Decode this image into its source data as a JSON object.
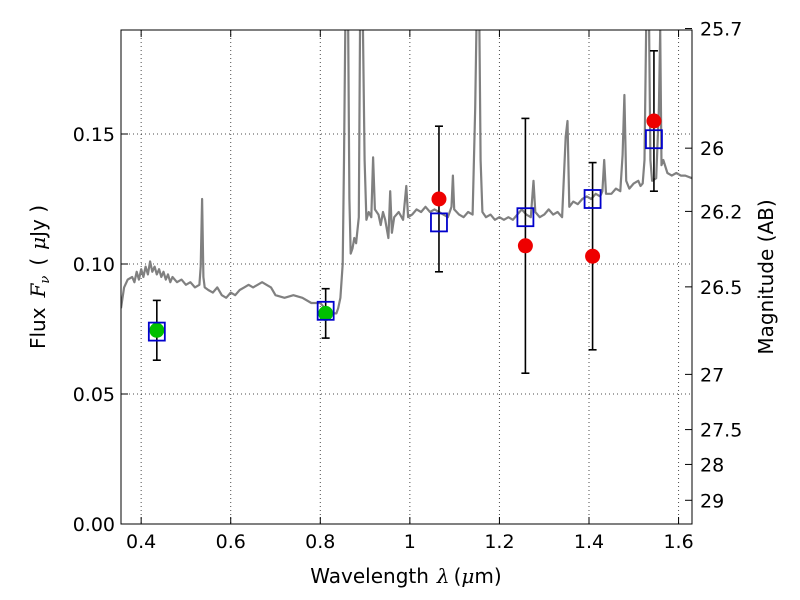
{
  "chart_data": {
    "type": "scatter",
    "title": "",
    "xlabel": "Wavelength",
    "xlabel_symbol": "λ",
    "xlabel_unit_open": "(",
    "xlabel_unit_mu": "μ",
    "xlabel_unit_rest": "m)",
    "ylabel_prefix": "Flux",
    "ylabel_symbol": "F",
    "ylabel_sub": "ν",
    "ylabel_open": "(",
    "ylabel_mu": "μ",
    "ylabel_unit": "Jy )",
    "y2label": "Magnitude (AB)",
    "xlim": [
      0.355,
      1.63
    ],
    "ylim": [
      0.0,
      0.19
    ],
    "grid": true,
    "x_ticks": [
      {
        "value": 0.4,
        "label": "0.4"
      },
      {
        "value": 0.6,
        "label": "0.6"
      },
      {
        "value": 0.8,
        "label": "0.8"
      },
      {
        "value": 1.0,
        "label": "1"
      },
      {
        "value": 1.2,
        "label": "1.2"
      },
      {
        "value": 1.4,
        "label": "1.4"
      },
      {
        "value": 1.6,
        "label": "1.6"
      }
    ],
    "y_ticks": [
      {
        "value": 0.0,
        "label": "0.00"
      },
      {
        "value": 0.05,
        "label": "0.05"
      },
      {
        "value": 0.1,
        "label": "0.10"
      },
      {
        "value": 0.15,
        "label": "0.15"
      }
    ],
    "y2_ticks": [
      {
        "value": 25.7,
        "label": "25.7"
      },
      {
        "value": 26,
        "label": "26"
      },
      {
        "value": 26.2,
        "label": "26.2"
      },
      {
        "value": 26.5,
        "label": "26.5"
      },
      {
        "value": 27,
        "label": "27"
      },
      {
        "value": 27.5,
        "label": "27.5"
      },
      {
        "value": 28,
        "label": "28"
      },
      {
        "value": 29,
        "label": "29"
      }
    ],
    "series": [
      {
        "role": "model-spectrum",
        "color": "#808080",
        "points": [
          [
            0.355,
            0.083
          ],
          [
            0.362,
            0.091
          ],
          [
            0.37,
            0.094
          ],
          [
            0.38,
            0.095
          ],
          [
            0.385,
            0.093
          ],
          [
            0.39,
            0.097
          ],
          [
            0.395,
            0.094
          ],
          [
            0.4,
            0.098
          ],
          [
            0.405,
            0.095
          ],
          [
            0.41,
            0.099
          ],
          [
            0.415,
            0.096
          ],
          [
            0.42,
            0.101
          ],
          [
            0.425,
            0.097
          ],
          [
            0.43,
            0.099
          ],
          [
            0.435,
            0.096
          ],
          [
            0.44,
            0.098
          ],
          [
            0.445,
            0.095
          ],
          [
            0.45,
            0.097
          ],
          [
            0.455,
            0.094
          ],
          [
            0.46,
            0.096
          ],
          [
            0.465,
            0.093
          ],
          [
            0.47,
            0.095
          ],
          [
            0.48,
            0.093
          ],
          [
            0.49,
            0.094
          ],
          [
            0.5,
            0.092
          ],
          [
            0.51,
            0.093
          ],
          [
            0.52,
            0.091
          ],
          [
            0.53,
            0.092
          ],
          [
            0.533,
            0.099
          ],
          [
            0.536,
            0.125
          ],
          [
            0.539,
            0.095
          ],
          [
            0.542,
            0.091
          ],
          [
            0.55,
            0.09
          ],
          [
            0.56,
            0.089
          ],
          [
            0.57,
            0.091
          ],
          [
            0.58,
            0.088
          ],
          [
            0.59,
            0.087
          ],
          [
            0.6,
            0.089
          ],
          [
            0.61,
            0.088
          ],
          [
            0.62,
            0.09
          ],
          [
            0.63,
            0.091
          ],
          [
            0.64,
            0.092
          ],
          [
            0.65,
            0.091
          ],
          [
            0.66,
            0.092
          ],
          [
            0.67,
            0.093
          ],
          [
            0.68,
            0.092
          ],
          [
            0.69,
            0.091
          ],
          [
            0.7,
            0.088
          ],
          [
            0.72,
            0.087
          ],
          [
            0.74,
            0.088
          ],
          [
            0.76,
            0.087
          ],
          [
            0.78,
            0.085
          ],
          [
            0.8,
            0.085
          ],
          [
            0.81,
            0.083
          ],
          [
            0.82,
            0.082
          ],
          [
            0.828,
            0.081
          ],
          [
            0.836,
            0.081
          ],
          [
            0.84,
            0.083
          ],
          [
            0.845,
            0.087
          ],
          [
            0.85,
            0.1
          ],
          [
            0.853,
            0.14
          ],
          [
            0.856,
            0.195
          ],
          [
            0.862,
            0.195
          ],
          [
            0.865,
            0.125
          ],
          [
            0.868,
            0.104
          ],
          [
            0.872,
            0.106
          ],
          [
            0.876,
            0.11
          ],
          [
            0.88,
            0.108
          ],
          [
            0.886,
            0.118
          ],
          [
            0.889,
            0.195
          ],
          [
            0.895,
            0.195
          ],
          [
            0.899,
            0.14
          ],
          [
            0.903,
            0.117
          ],
          [
            0.908,
            0.12
          ],
          [
            0.914,
            0.118
          ],
          [
            0.918,
            0.141
          ],
          [
            0.922,
            0.121
          ],
          [
            0.93,
            0.119
          ],
          [
            0.935,
            0.115
          ],
          [
            0.94,
            0.12
          ],
          [
            0.945,
            0.117
          ],
          [
            0.952,
            0.11
          ],
          [
            0.956,
            0.128
          ],
          [
            0.96,
            0.112
          ],
          [
            0.965,
            0.118
          ],
          [
            0.975,
            0.12
          ],
          [
            0.985,
            0.117
          ],
          [
            0.992,
            0.13
          ],
          [
            0.996,
            0.118
          ],
          [
            1.005,
            0.119
          ],
          [
            1.015,
            0.121
          ],
          [
            1.025,
            0.12
          ],
          [
            1.035,
            0.122
          ],
          [
            1.045,
            0.12
          ],
          [
            1.055,
            0.121
          ],
          [
            1.065,
            0.12
          ],
          [
            1.075,
            0.119
          ],
          [
            1.085,
            0.118
          ],
          [
            1.093,
            0.122
          ],
          [
            1.096,
            0.134
          ],
          [
            1.099,
            0.121
          ],
          [
            1.11,
            0.119
          ],
          [
            1.12,
            0.118
          ],
          [
            1.13,
            0.12
          ],
          [
            1.14,
            0.119
          ],
          [
            1.146,
            0.16
          ],
          [
            1.149,
            0.195
          ],
          [
            1.155,
            0.195
          ],
          [
            1.158,
            0.14
          ],
          [
            1.162,
            0.12
          ],
          [
            1.17,
            0.118
          ],
          [
            1.18,
            0.119
          ],
          [
            1.19,
            0.117
          ],
          [
            1.2,
            0.118
          ],
          [
            1.21,
            0.117
          ],
          [
            1.22,
            0.118
          ],
          [
            1.23,
            0.117
          ],
          [
            1.24,
            0.119
          ],
          [
            1.25,
            0.121
          ],
          [
            1.26,
            0.119
          ],
          [
            1.27,
            0.118
          ],
          [
            1.276,
            0.132
          ],
          [
            1.28,
            0.12
          ],
          [
            1.29,
            0.118
          ],
          [
            1.3,
            0.119
          ],
          [
            1.31,
            0.121
          ],
          [
            1.32,
            0.119
          ],
          [
            1.33,
            0.12
          ],
          [
            1.34,
            0.118
          ],
          [
            1.348,
            0.149
          ],
          [
            1.352,
            0.155
          ],
          [
            1.356,
            0.122
          ],
          [
            1.365,
            0.124
          ],
          [
            1.375,
            0.123
          ],
          [
            1.385,
            0.125
          ],
          [
            1.395,
            0.126
          ],
          [
            1.405,
            0.125
          ],
          [
            1.415,
            0.127
          ],
          [
            1.425,
            0.126
          ],
          [
            1.43,
            0.128
          ],
          [
            1.434,
            0.14
          ],
          [
            1.438,
            0.127
          ],
          [
            1.45,
            0.127
          ],
          [
            1.46,
            0.129
          ],
          [
            1.47,
            0.128
          ],
          [
            1.475,
            0.142
          ],
          [
            1.479,
            0.165
          ],
          [
            1.483,
            0.132
          ],
          [
            1.49,
            0.129
          ],
          [
            1.5,
            0.131
          ],
          [
            1.51,
            0.132
          ],
          [
            1.515,
            0.13
          ],
          [
            1.52,
            0.131
          ],
          [
            1.524,
            0.14
          ],
          [
            1.528,
            0.195
          ],
          [
            1.534,
            0.195
          ],
          [
            1.537,
            0.14
          ],
          [
            1.541,
            0.132
          ],
          [
            1.55,
            0.133
          ],
          [
            1.556,
            0.16
          ],
          [
            1.559,
            0.19
          ],
          [
            1.562,
            0.138
          ],
          [
            1.566,
            0.14
          ],
          [
            1.575,
            0.135
          ],
          [
            1.585,
            0.134
          ],
          [
            1.595,
            0.135
          ],
          [
            1.605,
            0.134
          ],
          [
            1.615,
            0.134
          ],
          [
            1.63,
            0.133
          ]
        ]
      },
      {
        "role": "model-photometry",
        "marker": "open-square",
        "color": "#0000cc",
        "x": [
          0.435,
          0.812,
          1.065,
          1.258,
          1.408,
          1.545
        ],
        "y": [
          0.074,
          0.082,
          0.116,
          0.118,
          0.125,
          0.148
        ]
      },
      {
        "role": "observed-green",
        "marker": "filled-circle",
        "color": "#00c000",
        "x": [
          0.435,
          0.812
        ],
        "y": [
          0.0745,
          0.081
        ],
        "yerr": [
          0.0115,
          0.0095
        ]
      },
      {
        "role": "observed-red",
        "marker": "filled-circle",
        "color": "#ee0000",
        "x": [
          1.065,
          1.258,
          1.408,
          1.545
        ],
        "y": [
          0.125,
          0.107,
          0.103,
          0.155
        ],
        "yerr": [
          0.028,
          0.049,
          0.036,
          0.027
        ]
      }
    ]
  }
}
